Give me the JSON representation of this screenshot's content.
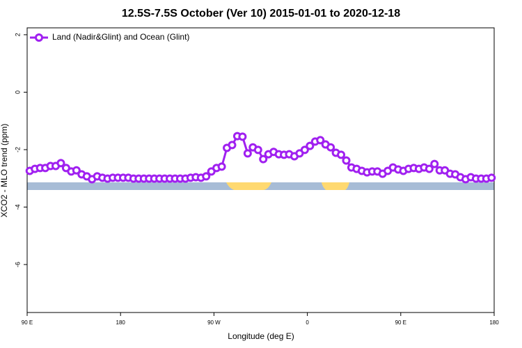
{
  "chart_data": {
    "type": "line",
    "title": "12.5S-7.5S October (Ver 10)   2015-01-01 to 2020-12-18",
    "x_label": "Longitude (deg E)",
    "y_label": "XCO2 - MLO trend (ppm)",
    "xlim": [
      90,
      540
    ],
    "ylim": [
      -7.67,
      2.24
    ],
    "xticks": [
      {
        "value": 90,
        "label": "90 E"
      },
      180,
      {
        "value": 270,
        "label": "90 W"
      },
      {
        "value": 360,
        "label": "0"
      },
      {
        "value": 450,
        "label": "90 E"
      },
      {
        "value": 540,
        "label": "180"
      }
    ],
    "yticks": [
      2,
      0,
      -2,
      -4,
      -6
    ],
    "legend": "top-left",
    "x": [
      92.5,
      97.5,
      102.5,
      107.5,
      112.5,
      117.5,
      122.5,
      127.5,
      132.5,
      137.5,
      142.5,
      147.5,
      152.5,
      157.5,
      162.5,
      167.5,
      172.5,
      177.5,
      182.5,
      187.5,
      192.5,
      197.5,
      202.5,
      207.5,
      212.5,
      217.5,
      222.5,
      227.5,
      232.5,
      237.5,
      242.5,
      247.5,
      252.5,
      257.5,
      262.5,
      267.5,
      272.5,
      277.5,
      282.5,
      287.5,
      292.5,
      297.5,
      302.5,
      307.5,
      312.5,
      317.5,
      322.5,
      327.5,
      332.5,
      337.5,
      342.5,
      347.5,
      352.5,
      357.5,
      362.5,
      367.5,
      372.5,
      377.5,
      382.5,
      387.5,
      392.5,
      397.5,
      402.5,
      407.5,
      412.5,
      417.5,
      422.5,
      427.5,
      432.5,
      437.5,
      442.5,
      447.5,
      452.5,
      457.5,
      462.5,
      467.5,
      472.5,
      477.5,
      482.5,
      487.5,
      492.5,
      497.5,
      502.5,
      507.5,
      512.5,
      517.5,
      522.5,
      527.5,
      532.5,
      537.5
    ],
    "series": [
      {
        "name": "Land (Nadir&Glint) and Ocean (Glint)",
        "color": "#a020f0",
        "values": [
          -2.74,
          -2.67,
          -2.64,
          -2.64,
          -2.57,
          -2.57,
          -2.47,
          -2.64,
          -2.76,
          -2.72,
          -2.86,
          -2.93,
          -3.03,
          -2.93,
          -2.98,
          -3.01,
          -2.98,
          -2.98,
          -2.98,
          -2.98,
          -3.01,
          -3.01,
          -3.01,
          -3.01,
          -3.01,
          -3.01,
          -3.01,
          -3.01,
          -3.01,
          -3.01,
          -3.01,
          -2.98,
          -2.96,
          -2.98,
          -2.93,
          -2.76,
          -2.64,
          -2.59,
          -1.94,
          -1.84,
          -1.53,
          -1.55,
          -2.13,
          -1.92,
          -2.01,
          -2.33,
          -2.16,
          -2.08,
          -2.16,
          -2.18,
          -2.16,
          -2.23,
          -2.13,
          -2.01,
          -1.87,
          -1.72,
          -1.67,
          -1.82,
          -1.92,
          -2.11,
          -2.18,
          -2.38,
          -2.62,
          -2.67,
          -2.74,
          -2.79,
          -2.76,
          -2.76,
          -2.84,
          -2.74,
          -2.62,
          -2.69,
          -2.74,
          -2.67,
          -2.64,
          -2.67,
          -2.62,
          -2.67,
          -2.5,
          -2.72,
          -2.72,
          -2.84,
          -2.86,
          -2.96,
          -3.03,
          -2.96,
          -3.01,
          -3.01,
          -3.01,
          -2.98
        ]
      }
    ]
  }
}
